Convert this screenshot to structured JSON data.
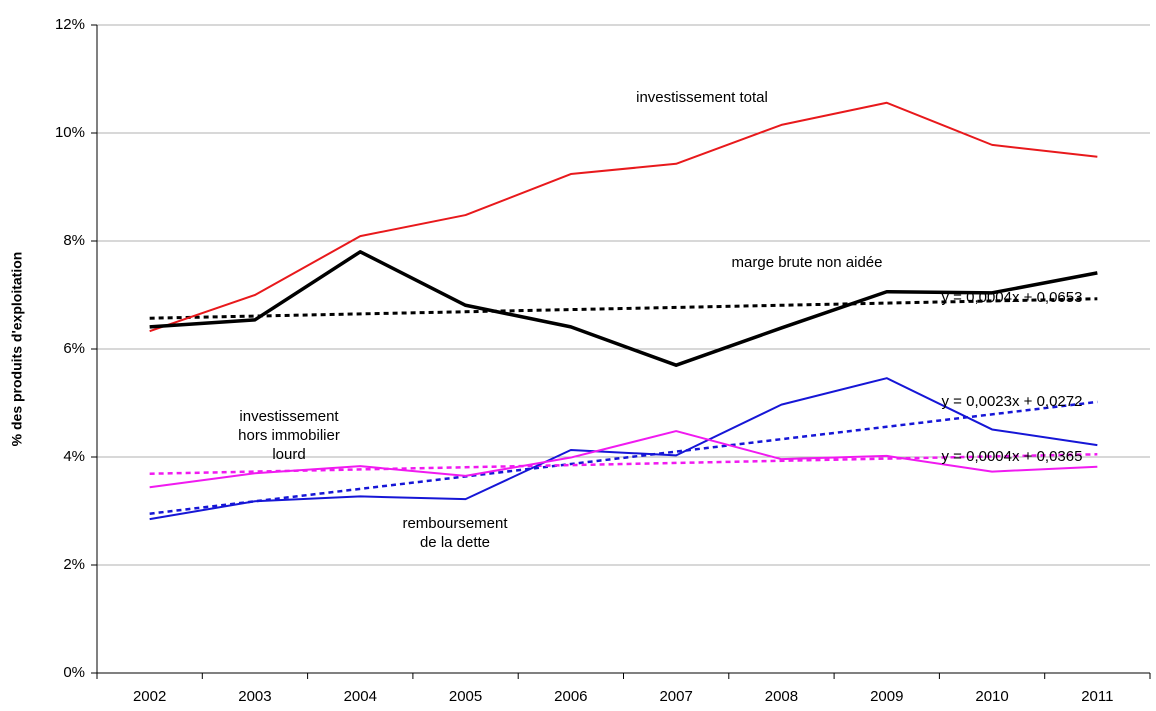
{
  "chart_data": {
    "type": "line",
    "y_label": "% des produits d'exploitation",
    "categories": [
      "2002",
      "2003",
      "2004",
      "2005",
      "2006",
      "2007",
      "2008",
      "2009",
      "2010",
      "2011"
    ],
    "series": [
      {
        "name": "investissement total",
        "color": "#e8191c",
        "width": 2,
        "values": [
          6.33,
          7.0,
          8.09,
          8.48,
          9.24,
          9.43,
          10.15,
          10.56,
          9.78,
          9.56
        ]
      },
      {
        "name": "marge brute non aidée",
        "color": "#000000",
        "width": 3.5,
        "values": [
          6.41,
          6.54,
          7.8,
          6.81,
          6.41,
          5.7,
          6.39,
          7.06,
          7.04,
          7.41
        ],
        "trend": {
          "slope": 0.04,
          "intercept": 6.53,
          "label": "y = 0,0004x + 0,0653"
        }
      },
      {
        "name": "remboursement de la dette",
        "color": "#1616d6",
        "width": 2,
        "values": [
          2.85,
          3.18,
          3.27,
          3.22,
          4.13,
          4.03,
          4.97,
          5.46,
          4.51,
          4.22
        ],
        "trend": {
          "slope": 0.23,
          "intercept": 2.72,
          "label": "y = 0,0023x + 0,0272"
        }
      },
      {
        "name": "investissement hors immobilier lourd",
        "color": "#f01af0",
        "width": 2,
        "values": [
          3.44,
          3.7,
          3.83,
          3.65,
          3.99,
          4.48,
          3.96,
          4.02,
          3.73,
          3.82
        ],
        "trend": {
          "slope": 0.04,
          "intercept": 3.65,
          "label": "y = 0,0004x + 0,0365"
        }
      }
    ],
    "ylim": [
      0,
      12
    ],
    "yticks": [
      {
        "value": 0,
        "label": "0%"
      },
      {
        "value": 2,
        "label": "2%"
      },
      {
        "value": 4,
        "label": "4%"
      },
      {
        "value": 6,
        "label": "6%"
      },
      {
        "value": 8,
        "label": "8%"
      },
      {
        "value": 10,
        "label": "10%"
      },
      {
        "value": 12,
        "label": "12%"
      }
    ],
    "grid": true
  }
}
